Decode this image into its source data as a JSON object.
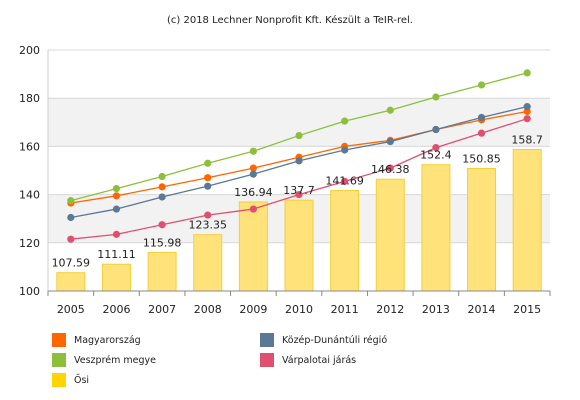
{
  "credit": "(c) 2018 Lechner Nonprofit Kft. Készült a TeIR-rel.",
  "chart_data": {
    "type": "bar",
    "categories": [
      "2005",
      "2006",
      "2007",
      "2008",
      "2009",
      "2010",
      "2011",
      "2012",
      "2013",
      "2014",
      "2015"
    ],
    "ylim": [
      100,
      200
    ],
    "yticks": [
      "100",
      "120",
      "140",
      "160",
      "180",
      "200"
    ],
    "bar_series": {
      "name": "Ősi",
      "color": "#ffd400",
      "values": [
        107.59,
        111.11,
        115.98,
        123.35,
        136.94,
        137.7,
        141.69,
        146.38,
        152.4,
        150.85,
        158.7
      ],
      "labels": [
        "107.59",
        "111.11",
        "115.98",
        "123.35",
        "136.94",
        "137.7",
        "141.69",
        "146.38",
        "152.4",
        "150.85",
        "158.7"
      ]
    },
    "line_series": [
      {
        "name": "Magyarország",
        "color": "#ff6600",
        "values": [
          136.5,
          139.5,
          143.2,
          147.0,
          151.0,
          155.5,
          160.0,
          162.5,
          167.0,
          171.0,
          174.5
        ]
      },
      {
        "name": "Veszprém megye",
        "color": "#8dbf3c",
        "values": [
          137.5,
          142.5,
          147.5,
          153.0,
          158.0,
          164.5,
          170.5,
          175.0,
          180.5,
          185.5,
          190.5
        ]
      },
      {
        "name": "Közép-Dunántúli régió",
        "color": "#5b7896",
        "values": [
          130.5,
          134.0,
          139.0,
          143.5,
          148.5,
          154.0,
          158.5,
          162.0,
          167.0,
          172.0,
          176.5
        ]
      },
      {
        "name": "Várpalotai járás",
        "color": "#e0506e",
        "values": [
          121.5,
          123.5,
          127.5,
          131.5,
          134.0,
          140.0,
          145.5,
          151.0,
          159.5,
          165.5,
          171.5
        ]
      }
    ],
    "grid": true,
    "legend_position": "bottom"
  },
  "legend": [
    {
      "label": "Magyarország",
      "color": "#ff6600"
    },
    {
      "label": "Közép-Dunántúli régió",
      "color": "#5b7896"
    },
    {
      "label": "Veszprém megye",
      "color": "#8dbf3c"
    },
    {
      "label": "Várpalotai járás",
      "color": "#e0506e"
    },
    {
      "label": "Ősi",
      "color": "#ffd400"
    }
  ]
}
